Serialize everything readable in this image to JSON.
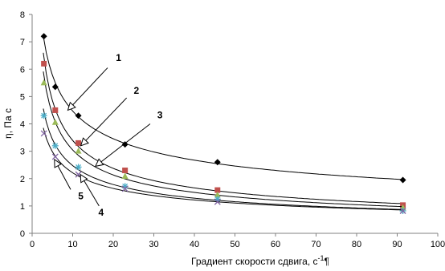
{
  "chart_data": {
    "type": "line",
    "title": "",
    "xlabel": "Градиент скорости сдвига, с",
    "xlabel_sup": "-1",
    "xlabel_tail": "¶",
    "ylabel": "η, Па с",
    "xlim": [
      0,
      100
    ],
    "ylim": [
      0,
      8
    ],
    "x_ticks": [
      "0",
      "10",
      "20",
      "30",
      "40",
      "50",
      "60",
      "70",
      "80",
      "90",
      "100"
    ],
    "y_ticks": [
      "0",
      "1",
      "2",
      "3",
      "4",
      "5",
      "6",
      "7",
      "8"
    ],
    "grid": false,
    "legend": "none",
    "series": [
      {
        "callout": "1",
        "marker": "diamond",
        "color": "#000000",
        "x": [
          2.9,
          5.7,
          11.4,
          22.9,
          45.7,
          91.4
        ],
        "y": [
          7.2,
          5.35,
          4.3,
          3.25,
          2.6,
          1.95
        ]
      },
      {
        "callout": "2",
        "marker": "square",
        "color": "#c0504d",
        "x": [
          2.9,
          5.7,
          11.4,
          22.9,
          45.7,
          91.4
        ],
        "y": [
          6.2,
          4.5,
          3.3,
          2.3,
          1.58,
          1.03
        ]
      },
      {
        "callout": "3",
        "marker": "triangle",
        "color": "#9bbb59",
        "x": [
          2.9,
          5.7,
          11.4,
          22.9,
          45.7,
          91.4
        ],
        "y": [
          5.5,
          4.05,
          3.0,
          2.08,
          1.4,
          0.93
        ]
      },
      {
        "callout": "4",
        "marker": "star",
        "color": "#4bacc6",
        "x": [
          2.9,
          5.7,
          11.4,
          22.9,
          45.7,
          91.4
        ],
        "y": [
          4.3,
          3.2,
          2.42,
          1.72,
          1.25,
          0.82
        ]
      },
      {
        "callout": "5",
        "marker": "x",
        "color": "#8064a2",
        "x": [
          2.9,
          5.7,
          11.4,
          22.9,
          45.7,
          91.4
        ],
        "y": [
          3.65,
          2.8,
          2.15,
          1.63,
          1.15,
          0.82
        ]
      }
    ],
    "callouts": [
      {
        "label": "1",
        "text_at": [
          21.3,
          6.3
        ],
        "arrow_from": [
          18.6,
          6.05
        ],
        "arrow_to": [
          8.8,
          4.5
        ]
      },
      {
        "label": "2",
        "text_at": [
          25.7,
          5.1
        ],
        "arrow_from": [
          23.3,
          4.95
        ],
        "arrow_to": [
          12.0,
          3.2
        ]
      },
      {
        "label": "3",
        "text_at": [
          31.5,
          4.2
        ],
        "arrow_from": [
          29.1,
          4.0
        ],
        "arrow_to": [
          15.6,
          2.45
        ]
      },
      {
        "label": "4",
        "text_at": [
          17.0,
          0.65
        ],
        "arrow_from": [
          16.5,
          1.0
        ],
        "arrow_to": [
          11.9,
          2.15
        ]
      },
      {
        "label": "5",
        "text_at": [
          12.0,
          1.25
        ],
        "arrow_from": [
          9.5,
          1.6
        ],
        "arrow_to": [
          5.5,
          2.7
        ]
      }
    ]
  }
}
